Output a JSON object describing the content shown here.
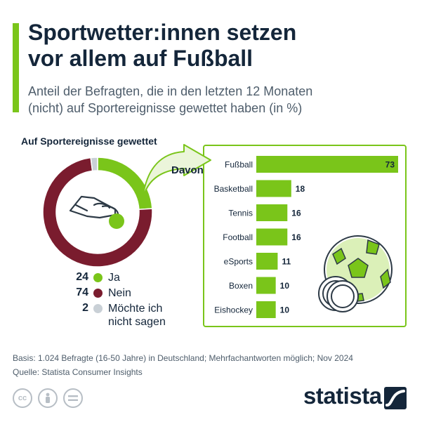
{
  "header": {
    "title_lines": [
      "Sportwetter:innen setzen",
      "vor allem auf Fußball"
    ],
    "subtitle_lines": [
      "Anteil der Befragten, die in den letzten 12 Monaten",
      "(nicht) auf Sportereignisse gewettet haben (in %)"
    ]
  },
  "colors": {
    "accent": "#7ac51a",
    "ja": "#7ac51a",
    "nein": "#7a1c2e",
    "na": "#c9d0d6",
    "navy": "#14263a",
    "icon": "#2d3a46"
  },
  "chart_data": [
    {
      "type": "pie",
      "title": "Auf Sportereignisse gewettet",
      "slices": [
        {
          "label": "Ja",
          "value": 24,
          "color": "#7ac51a"
        },
        {
          "label": "Nein",
          "value": 74,
          "color": "#7a1c2e"
        },
        {
          "label": "Möchte ich nicht sagen",
          "label_lines": [
            "Möchte ich",
            "nicht sagen"
          ],
          "value": 2,
          "color": "#c9d0d6"
        }
      ]
    },
    {
      "type": "bar",
      "title": "Davon",
      "categories": [
        "Fußball",
        "Basketball",
        "Tennis",
        "Football",
        "eSports",
        "Boxen",
        "Eishockey"
      ],
      "values": [
        73,
        18,
        16,
        16,
        11,
        10,
        10
      ],
      "orientation": "horizontal"
    }
  ],
  "footer": {
    "basis": "Basis: 1.024 Befragte (16-50 Jahre) in Deutschland; Mehrfachantworten möglich; Nov 2024",
    "source": "Quelle: Statista Consumer Insights"
  },
  "license_icons": [
    "cc-icon",
    "person-icon",
    "equals-icon"
  ],
  "brand": {
    "name": "statista"
  }
}
